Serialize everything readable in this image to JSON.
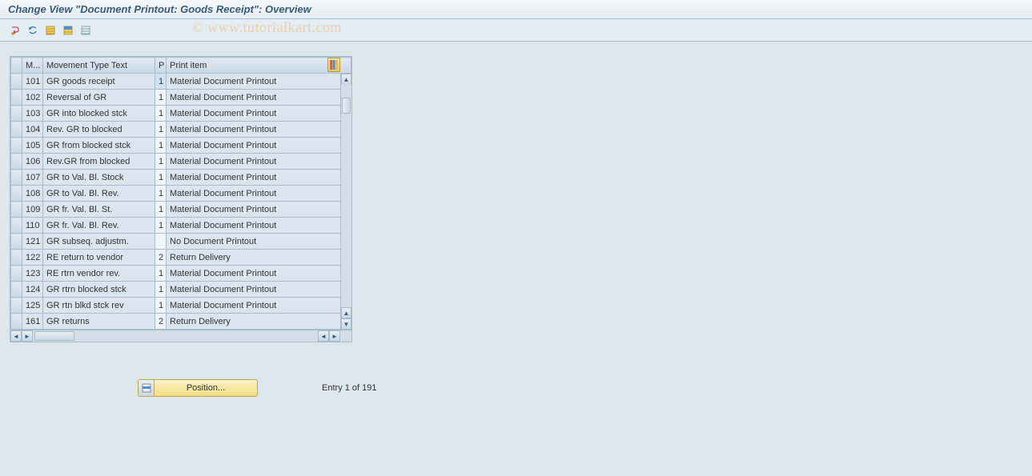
{
  "title": "Change View \"Document Printout: Goods Receipt\": Overview",
  "watermark": "© www.tutorialkart.com",
  "colors": {
    "page_bg": "#dce6ed",
    "panel_border": "#a8bccc",
    "header_grad_top": "#e0e9f0",
    "header_grad_bottom": "#c9d9e6",
    "cell_edit_bg": "#eff6fb",
    "cell_ro_bg": "#dbe5ed",
    "cell_sel_bg": "#cfe3f5",
    "title_text": "#3a5a78",
    "pos_btn_top": "#fdf3c7",
    "pos_btn_bottom": "#f3dd82",
    "pos_btn_border": "#c0a94c"
  },
  "toolbar": {
    "icons": [
      "display-change-icon",
      "undo-icon",
      "select-all-icon",
      "select-block-icon",
      "deselect-all-icon"
    ]
  },
  "table": {
    "columns": [
      {
        "key": "m",
        "label": "M...",
        "width": 26
      },
      {
        "key": "text",
        "label": "Movement Type Text",
        "width": 140
      },
      {
        "key": "p",
        "label": "P",
        "width": 14
      },
      {
        "key": "item",
        "label": "Print item",
        "width": "auto"
      }
    ],
    "rows": [
      {
        "m": "101",
        "text": "GR goods receipt",
        "p": "1",
        "item": "Material Document Printout",
        "selected": true
      },
      {
        "m": "102",
        "text": "Reversal of GR",
        "p": "1",
        "item": "Material Document Printout"
      },
      {
        "m": "103",
        "text": "GR into blocked stck",
        "p": "1",
        "item": "Material Document Printout"
      },
      {
        "m": "104",
        "text": "Rev. GR to blocked",
        "p": "1",
        "item": "Material Document Printout"
      },
      {
        "m": "105",
        "text": "GR from blocked stck",
        "p": "1",
        "item": "Material Document Printout"
      },
      {
        "m": "106",
        "text": "Rev.GR from blocked",
        "p": "1",
        "item": "Material Document Printout"
      },
      {
        "m": "107",
        "text": "GR to Val. Bl. Stock",
        "p": "1",
        "item": "Material Document Printout"
      },
      {
        "m": "108",
        "text": "GR to Val. Bl. Rev.",
        "p": "1",
        "item": "Material Document Printout"
      },
      {
        "m": "109",
        "text": "GR fr. Val. Bl. St.",
        "p": "1",
        "item": "Material Document Printout"
      },
      {
        "m": "110",
        "text": "GR fr. Val. Bl. Rev.",
        "p": "1",
        "item": "Material Document Printout"
      },
      {
        "m": "121",
        "text": "GR subseq. adjustm.",
        "p": "",
        "item": "No Document Printout"
      },
      {
        "m": "122",
        "text": "RE return to vendor",
        "p": "2",
        "item": "Return Delivery"
      },
      {
        "m": "123",
        "text": "RE rtrn vendor rev.",
        "p": "1",
        "item": "Material Document Printout"
      },
      {
        "m": "124",
        "text": "GR rtrn blocked stck",
        "p": "1",
        "item": "Material Document Printout"
      },
      {
        "m": "125",
        "text": "GR rtn blkd stck rev",
        "p": "1",
        "item": "Material Document Printout"
      },
      {
        "m": "161",
        "text": "GR returns",
        "p": "2",
        "item": "Return Delivery"
      }
    ]
  },
  "footer": {
    "position_label": "Position...",
    "entry_text": "Entry 1 of 191"
  }
}
